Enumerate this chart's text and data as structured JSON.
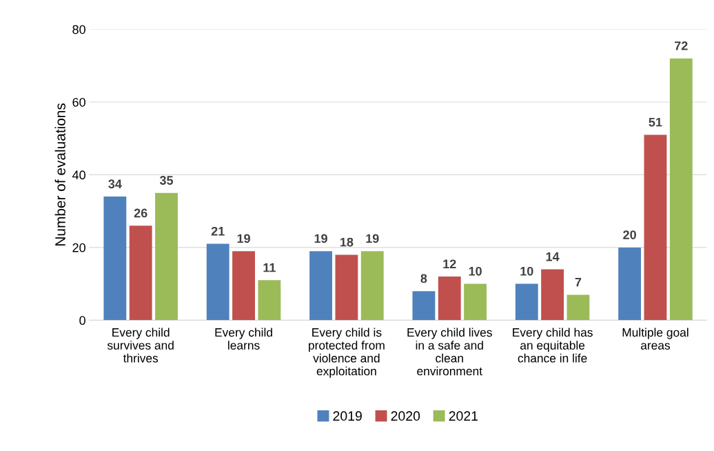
{
  "chart_data": {
    "type": "bar",
    "ylabel": "Number of evaluations",
    "categories": [
      "Every child\nsurvives and\nthrives",
      "Every child\nlearns",
      "Every child is\nprotected from\nviolence and\nexploitation",
      "Every child lives\nin a safe and\nclean\nenvironment",
      "Every child has\nan equitable\nchance in life",
      "Multiple goal\nareas"
    ],
    "series": [
      {
        "name": "2019",
        "color": "#4f81bd",
        "values": [
          34,
          21,
          19,
          8,
          10,
          20
        ]
      },
      {
        "name": "2020",
        "color": "#c0504d",
        "values": [
          26,
          19,
          18,
          12,
          14,
          51
        ]
      },
      {
        "name": "2021",
        "color": "#9bbb59",
        "values": [
          35,
          11,
          19,
          10,
          7,
          72
        ]
      }
    ],
    "ylim": [
      0,
      80
    ],
    "yticks": [
      0,
      20,
      40,
      60,
      80
    ],
    "grid": "y",
    "legend": "bottom",
    "data_labels": true
  }
}
